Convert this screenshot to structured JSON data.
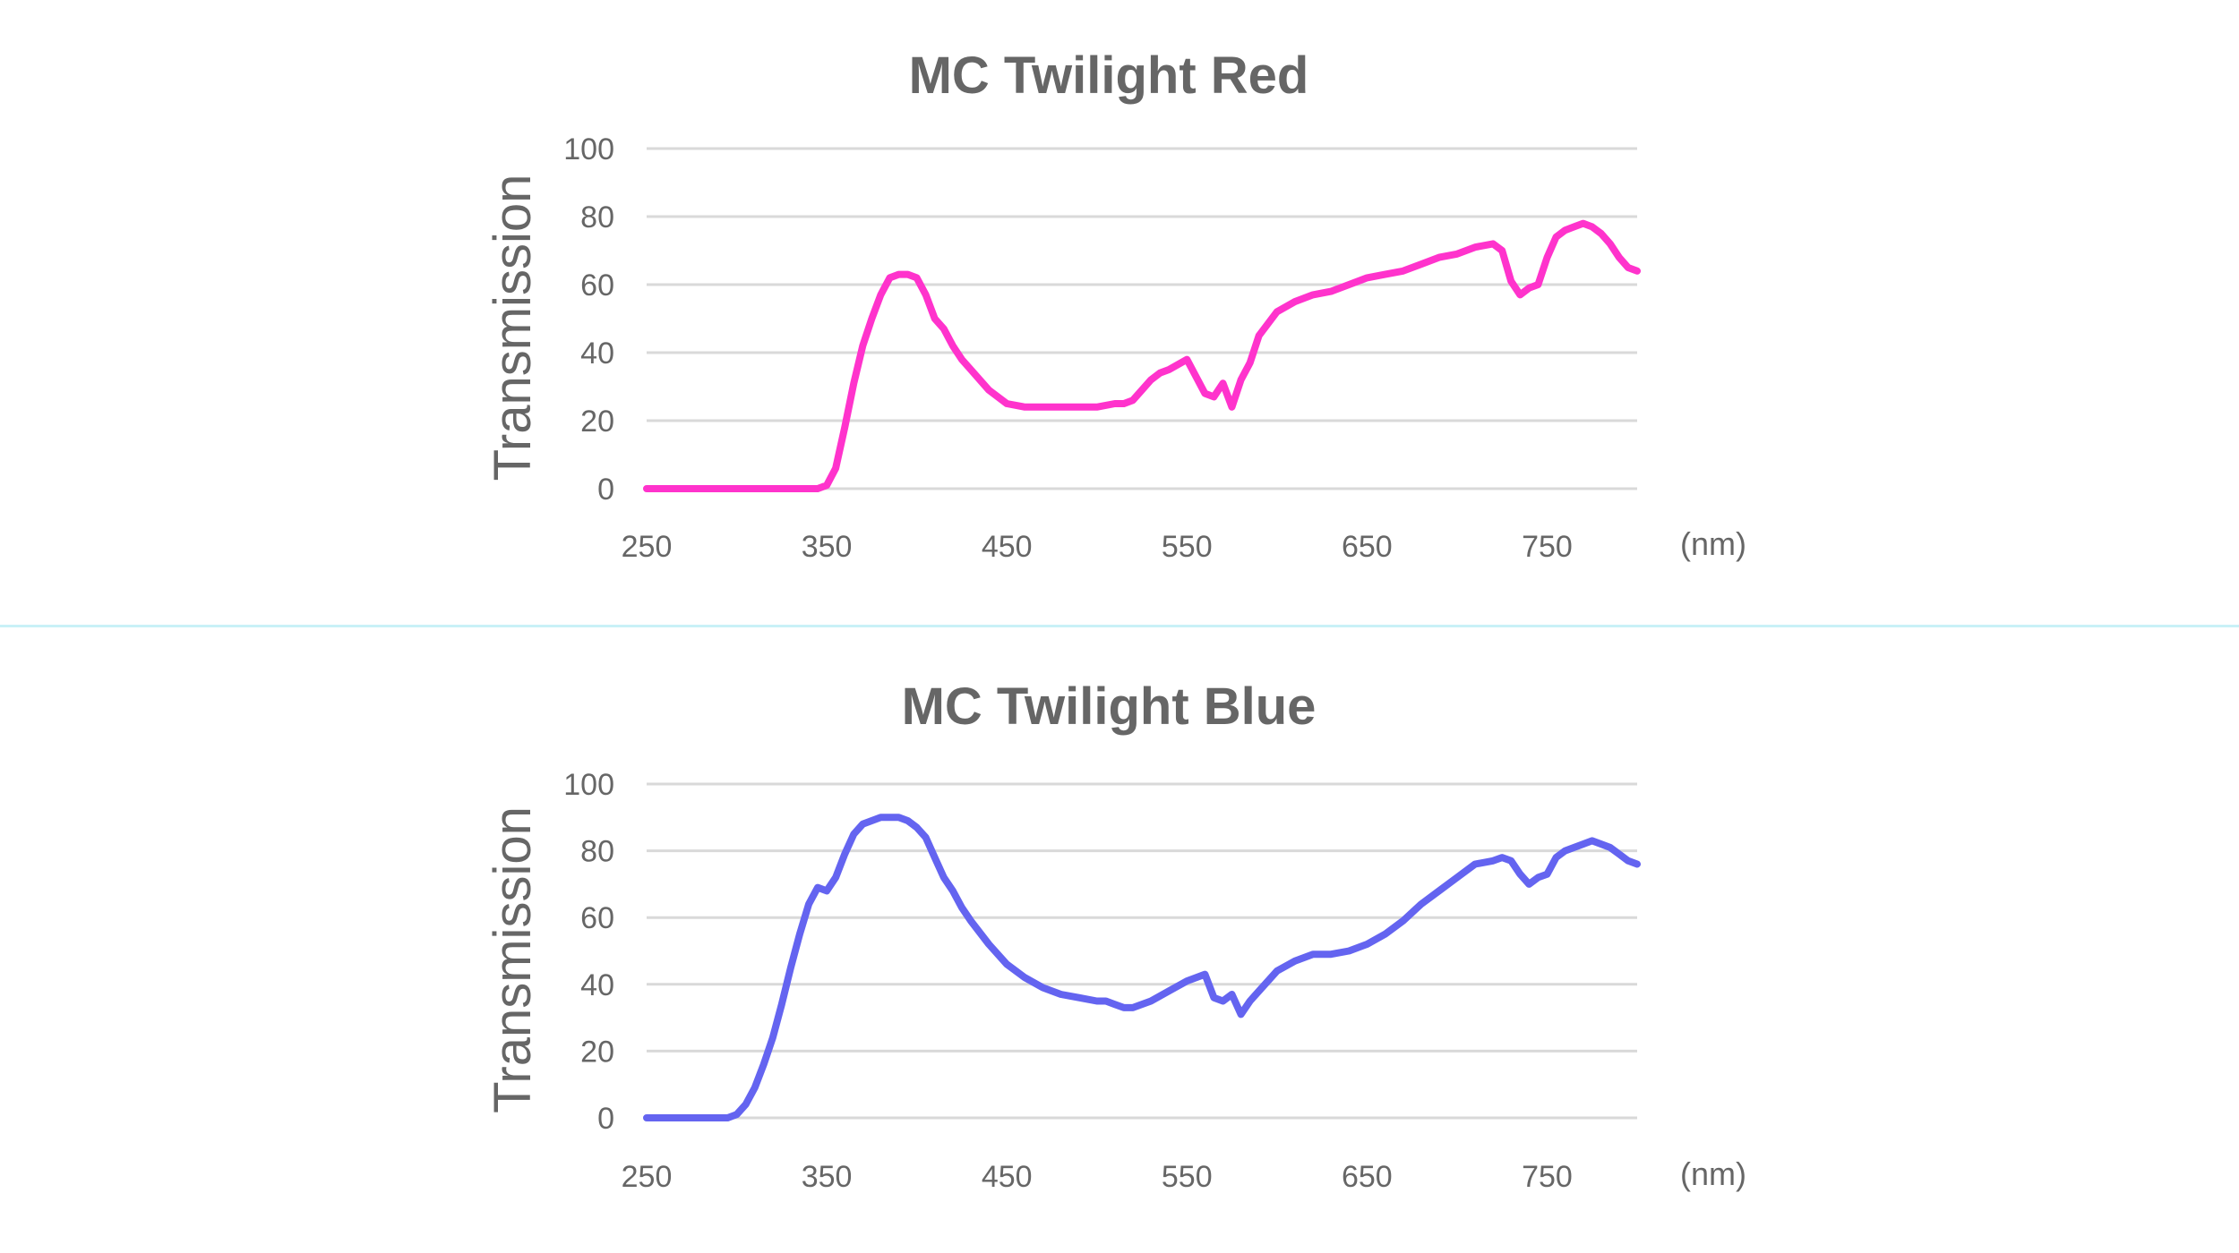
{
  "divider_color": "#c9f1f7",
  "text_color": "#666666",
  "grid_color": "#d9d9d9",
  "chart_data": [
    {
      "type": "line",
      "title": "MC Twilight Red",
      "xlabel": "",
      "ylabel": "Transmission",
      "x_unit_label": "(nm)",
      "xlim": [
        250,
        800
      ],
      "ylim": [
        0,
        100
      ],
      "x_ticks": [
        250,
        350,
        450,
        550,
        650,
        750
      ],
      "y_ticks": [
        0,
        20,
        40,
        60,
        80,
        100
      ],
      "grid": true,
      "series": [
        {
          "color": "#ff33cc",
          "x": [
            250,
            300,
            340,
            345,
            350,
            355,
            360,
            365,
            370,
            375,
            380,
            385,
            390,
            395,
            400,
            405,
            410,
            415,
            420,
            425,
            430,
            440,
            450,
            460,
            470,
            475,
            480,
            490,
            500,
            510,
            515,
            520,
            525,
            530,
            535,
            540,
            550,
            560,
            565,
            570,
            575,
            580,
            585,
            590,
            600,
            610,
            620,
            630,
            640,
            650,
            660,
            670,
            680,
            690,
            700,
            710,
            720,
            725,
            730,
            735,
            740,
            745,
            750,
            755,
            760,
            765,
            770,
            775,
            780,
            785,
            790,
            795,
            800
          ],
          "y": [
            0,
            0,
            0,
            0,
            1,
            6,
            18,
            31,
            42,
            50,
            57,
            62,
            63,
            63,
            62,
            57,
            50,
            47,
            42,
            38,
            35,
            29,
            25,
            24,
            24,
            24,
            24,
            24,
            24,
            25,
            25,
            26,
            29,
            32,
            34,
            35,
            38,
            28,
            27,
            31,
            24,
            32,
            37,
            45,
            52,
            55,
            57,
            58,
            60,
            62,
            63,
            64,
            66,
            68,
            69,
            71,
            72,
            70,
            61,
            57,
            59,
            60,
            68,
            74,
            76,
            77,
            78,
            77,
            75,
            72,
            68,
            65,
            64
          ]
        }
      ]
    },
    {
      "type": "line",
      "title": "MC Twilight Blue",
      "xlabel": "",
      "ylabel": "Transmission",
      "x_unit_label": "(nm)",
      "xlim": [
        250,
        800
      ],
      "ylim": [
        0,
        100
      ],
      "x_ticks": [
        250,
        350,
        450,
        550,
        650,
        750
      ],
      "y_ticks": [
        0,
        20,
        40,
        60,
        80,
        100
      ],
      "grid": true,
      "series": [
        {
          "color": "#6464f0",
          "x": [
            250,
            295,
            300,
            305,
            310,
            315,
            320,
            325,
            330,
            335,
            340,
            345,
            350,
            355,
            360,
            365,
            370,
            380,
            390,
            395,
            400,
            405,
            410,
            415,
            420,
            425,
            430,
            440,
            450,
            460,
            470,
            480,
            490,
            500,
            505,
            510,
            515,
            520,
            530,
            540,
            550,
            560,
            565,
            570,
            575,
            580,
            585,
            590,
            600,
            610,
            620,
            630,
            640,
            650,
            660,
            670,
            680,
            690,
            700,
            710,
            720,
            725,
            730,
            735,
            740,
            745,
            750,
            755,
            760,
            765,
            770,
            775,
            780,
            785,
            790,
            795,
            800
          ],
          "y": [
            0,
            0,
            1,
            4,
            9,
            16,
            24,
            34,
            45,
            55,
            64,
            69,
            68,
            72,
            79,
            85,
            88,
            90,
            90,
            89,
            87,
            84,
            78,
            72,
            68,
            63,
            59,
            52,
            46,
            42,
            39,
            37,
            36,
            35,
            35,
            34,
            33,
            33,
            35,
            38,
            41,
            43,
            36,
            35,
            37,
            31,
            35,
            38,
            44,
            47,
            49,
            49,
            50,
            52,
            55,
            59,
            64,
            68,
            72,
            76,
            77,
            78,
            77,
            73,
            70,
            72,
            73,
            78,
            80,
            81,
            82,
            83,
            82,
            81,
            79,
            77,
            76
          ]
        }
      ]
    }
  ]
}
